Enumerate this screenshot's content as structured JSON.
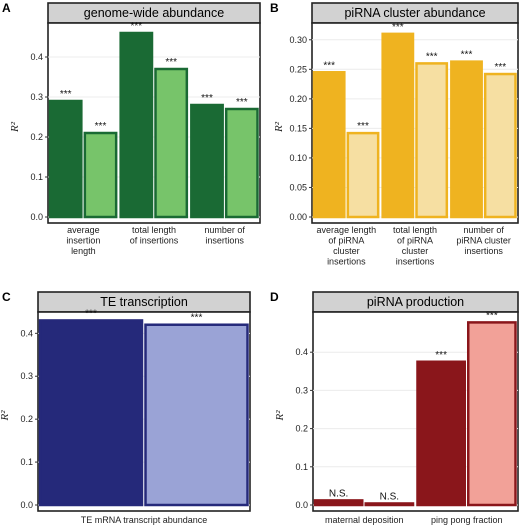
{
  "figure": {
    "panel_letters": [
      "A",
      "B",
      "C",
      "D"
    ]
  },
  "chart_data": [
    {
      "type": "bar",
      "panel": "A",
      "title": "genome-wide abundance",
      "ylabel": "R²",
      "ylim": [
        0,
        0.48
      ],
      "yticks": [
        "0.0",
        "0.1",
        "0.2",
        "0.3",
        "0.4"
      ],
      "colors": {
        "dark": "#1a6a34",
        "light": "#77c46a"
      },
      "groups": [
        {
          "label_lines": [
            "average",
            "insertion",
            "length"
          ],
          "values": [
            0.29,
            0.21
          ],
          "significance": [
            "***",
            "***"
          ]
        },
        {
          "label_lines": [
            "total length",
            "of insertions"
          ],
          "values": [
            0.46,
            0.37
          ],
          "significance": [
            "***",
            "***"
          ]
        },
        {
          "label_lines": [
            "number of",
            "insertions"
          ],
          "values": [
            0.28,
            0.27
          ],
          "significance": [
            "***",
            "***"
          ]
        }
      ]
    },
    {
      "type": "bar",
      "panel": "B",
      "title": "piRNA cluster abundance",
      "ylabel": "R²",
      "ylim": [
        0,
        0.325
      ],
      "yticks": [
        "0.00",
        "0.05",
        "0.10",
        "0.15",
        "0.20",
        "0.25",
        "0.30"
      ],
      "colors": {
        "dark": "#efb320",
        "light": "#f6dfa2"
      },
      "groups": [
        {
          "label_lines": [
            "average length",
            "of piRNA",
            "cluster",
            "insertions"
          ],
          "values": [
            0.245,
            0.142
          ],
          "significance": [
            "***",
            "***"
          ]
        },
        {
          "label_lines": [
            "total length",
            "of piRNA",
            "cluster",
            "insertions"
          ],
          "values": [
            0.31,
            0.26
          ],
          "significance": [
            "***",
            "***"
          ]
        },
        {
          "label_lines": [
            "number of",
            "piRNA cluster",
            "insertions"
          ],
          "values": [
            0.263,
            0.242
          ],
          "significance": [
            "***",
            "***"
          ]
        }
      ]
    },
    {
      "type": "bar",
      "panel": "C",
      "title": "TE transcription",
      "ylabel": "R²",
      "ylim": [
        0,
        0.445
      ],
      "yticks": [
        "0.0",
        "0.1",
        "0.2",
        "0.3",
        "0.4"
      ],
      "colors": {
        "dark": "#25297a",
        "light": "#9aa3d6"
      },
      "groups": [
        {
          "label_lines": [
            "TE mRNA transcript abundance"
          ],
          "values": [
            0.43,
            0.42
          ],
          "significance": [
            "***",
            "***"
          ]
        }
      ]
    },
    {
      "type": "bar",
      "panel": "D",
      "title": "piRNA production",
      "ylabel": "R²",
      "ylim": [
        0,
        0.5
      ],
      "yticks": [
        "0.0",
        "0.1",
        "0.2",
        "0.3",
        "0.4"
      ],
      "colors": {
        "dark": "#8a161b",
        "light": "#f2a198"
      },
      "groups": [
        {
          "label_lines": [
            "maternal deposition"
          ],
          "values": [
            0.012,
            0.004
          ],
          "significance": [
            "N.S.",
            "N.S."
          ]
        },
        {
          "label_lines": [
            "ping pong fraction"
          ],
          "values": [
            0.375,
            0.478
          ],
          "significance": [
            "***",
            "***"
          ]
        }
      ]
    }
  ]
}
